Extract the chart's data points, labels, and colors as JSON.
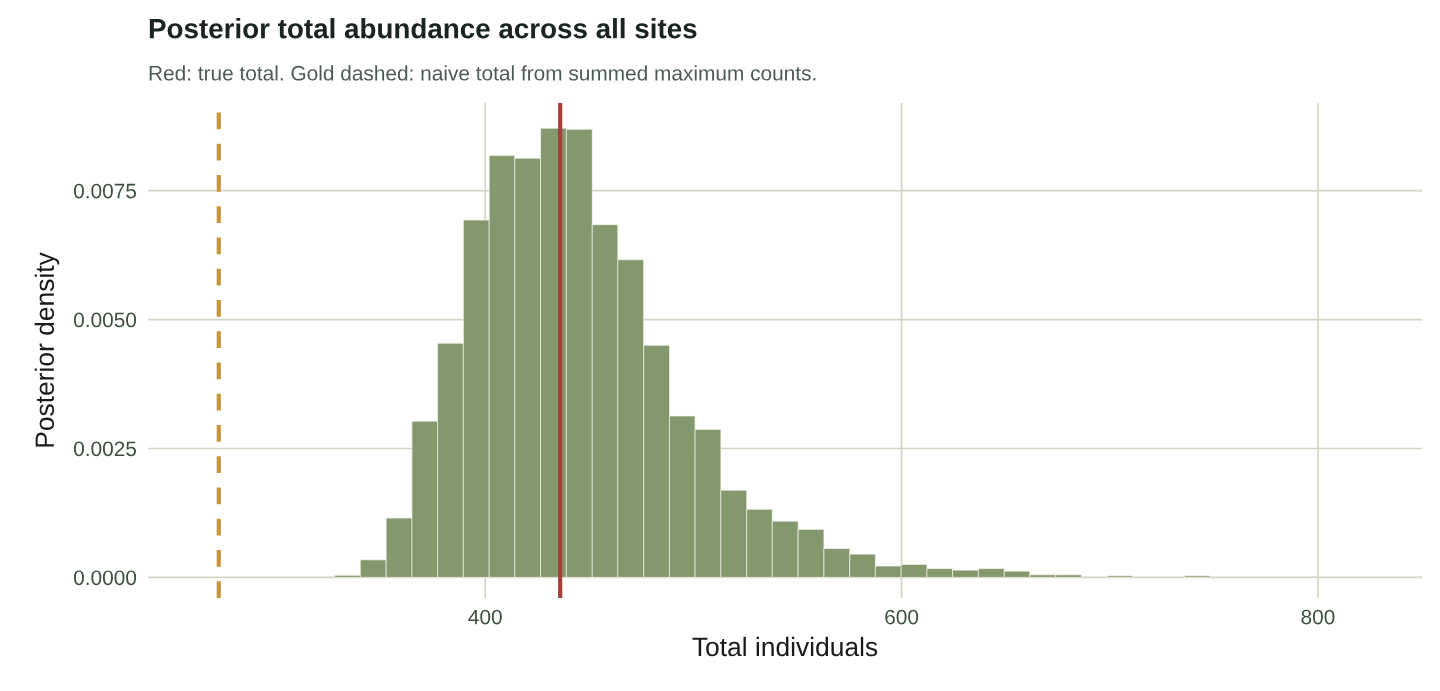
{
  "chart_data": {
    "type": "histogram",
    "title": "Posterior total abundance across all sites",
    "subtitle": "Red: true total. Gold dashed: naive total from summed maximum counts.",
    "xlabel": "Total individuals",
    "ylabel": "Posterior density",
    "bins": [
      265.8,
      278.2,
      290.5,
      302.9,
      315.3,
      327.7,
      340.0,
      352.4,
      364.8,
      377.1,
      389.5,
      401.9,
      414.2,
      426.6,
      439.0,
      451.4,
      463.7,
      476.1,
      488.5,
      500.8,
      513.2,
      525.6,
      537.9,
      550.3,
      562.7,
      575.1,
      587.4,
      599.8,
      612.2,
      624.5,
      636.9,
      649.3,
      661.6,
      674.0,
      686.4,
      698.8,
      711.1,
      723.5,
      735.9,
      748.2,
      760.6,
      773.0,
      785.3,
      797.7,
      810.1,
      822.4,
      834.8,
      847.2
    ],
    "values": [
      0,
      0,
      0,
      0,
      0,
      4e-05,
      0.00034,
      0.00115,
      0.00303,
      0.00454,
      0.00693,
      0.00818,
      0.00813,
      0.00871,
      0.00869,
      0.00684,
      0.00616,
      0.0045,
      0.00313,
      0.00287,
      0.00169,
      0.00132,
      0.00109,
      0.00093,
      0.00056,
      0.00045,
      0.00022,
      0.00025,
      0.00017,
      0.00014,
      0.00017,
      0.00012,
      5e-05,
      5e-05,
      0,
      3e-05,
      0,
      0,
      3e-05,
      0,
      0,
      0,
      0,
      0,
      0,
      0,
      0
    ],
    "color": "#83986c",
    "xlim": [
      238,
      850
    ],
    "xticks": [
      400,
      600,
      800
    ],
    "ylim": [
      -0.0004,
      0.0092
    ],
    "yticks": [
      {
        "value": 0,
        "label": "0.0000"
      },
      {
        "value": 0.0025,
        "label": "0.0025"
      },
      {
        "value": 0.005,
        "label": "0.0050"
      },
      {
        "value": 0.0075,
        "label": "0.0075"
      }
    ],
    "ref_lines": [
      {
        "axis": "x",
        "value": 436,
        "color": "#a3403a",
        "line_style": "solid"
      },
      {
        "axis": "x",
        "value": 272,
        "color": "#c8963a",
        "line_style": "dashed"
      }
    ],
    "grid": true,
    "legend": false
  }
}
